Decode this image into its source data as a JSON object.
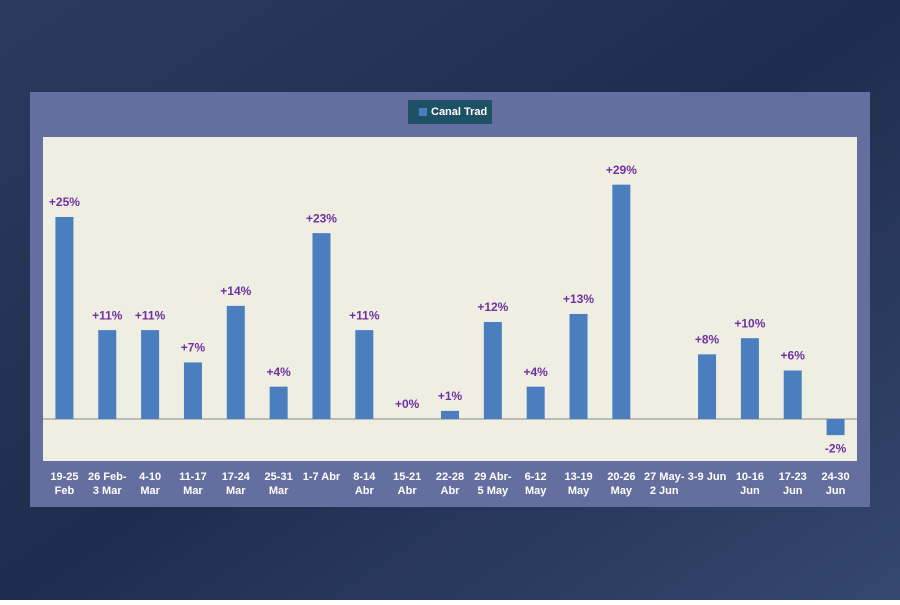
{
  "chart_data": {
    "type": "bar",
    "legend": {
      "name": "Canal Trad",
      "color": "#4a7ebf"
    },
    "categories": [
      [
        "19-25",
        "Feb"
      ],
      [
        "26 Feb-",
        "3 Mar"
      ],
      [
        "4-10",
        "Mar"
      ],
      [
        "11-17",
        "Mar"
      ],
      [
        "17-24",
        "Mar"
      ],
      [
        "25-31",
        "Mar"
      ],
      [
        "1-7 Abr"
      ],
      [
        "8-14",
        "Abr"
      ],
      [
        "15-21",
        "Abr"
      ],
      [
        "22-28",
        "Abr"
      ],
      [
        "29 Abr-",
        "5 May"
      ],
      [
        "6-12",
        "May"
      ],
      [
        "13-19",
        "May"
      ],
      [
        "20-26",
        "May"
      ],
      [
        "27 May-",
        "2 Jun"
      ],
      [
        "3-9 Jun"
      ],
      [
        "10-16",
        "Jun"
      ],
      [
        "17-23",
        "Jun"
      ],
      [
        "24-30",
        "Jun"
      ]
    ],
    "values": [
      25,
      11,
      11,
      7,
      14,
      4,
      23,
      11,
      0,
      1,
      12,
      4,
      13,
      29,
      null,
      8,
      10,
      6,
      -2
    ],
    "value_labels": [
      "+25%",
      "+11%",
      "+11%",
      "+7%",
      "+14%",
      "+4%",
      "+23%",
      "+11%",
      "+0%",
      "+1%",
      "+12%",
      "+4%",
      "+13%",
      "+29%",
      null,
      "+8%",
      "+10%",
      "+6%",
      "-2%"
    ],
    "color": "#4a7ebf",
    "ylim": [
      -5.2,
      34.9
    ]
  }
}
